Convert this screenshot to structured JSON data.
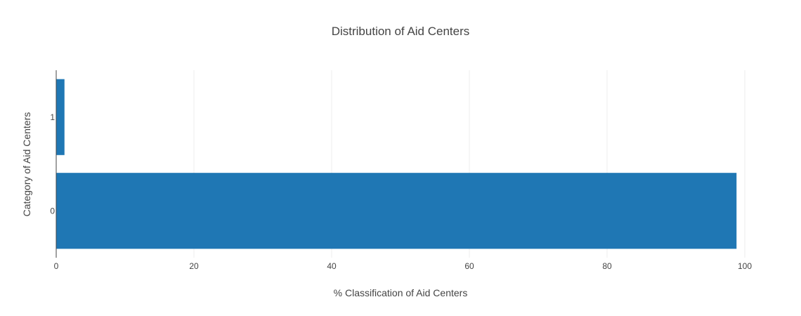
{
  "chart_data": {
    "type": "bar",
    "orientation": "horizontal",
    "title": "Distribution of Aid Centers",
    "xlabel": "% Classification of Aid Centers",
    "ylabel": "Category of Aid Centers",
    "categories": [
      "0",
      "1"
    ],
    "values": [
      98.8,
      1.2
    ],
    "xlim": [
      0,
      100
    ],
    "xticks": [
      0,
      20,
      40,
      60,
      80,
      100
    ],
    "grid": true,
    "bar_color": "#1f77b4"
  }
}
